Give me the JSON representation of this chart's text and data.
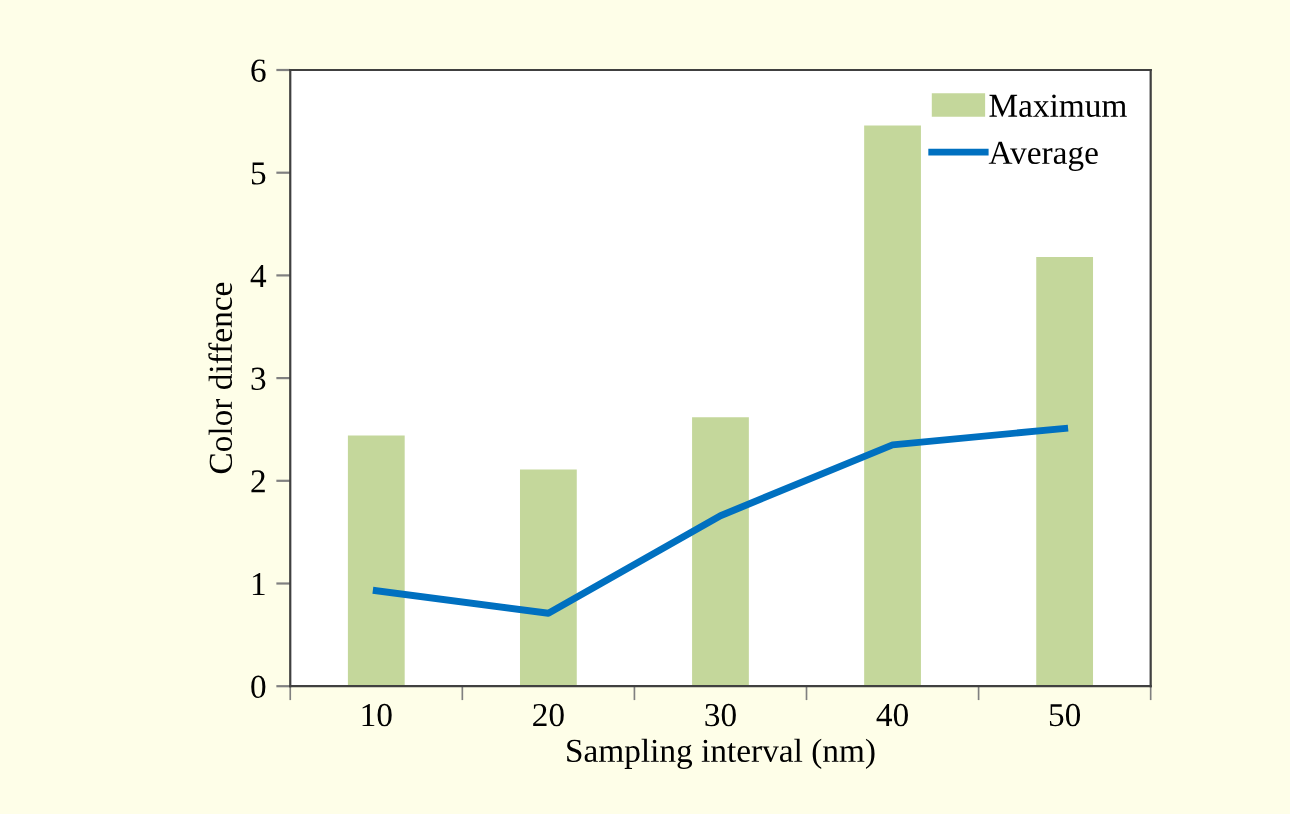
{
  "chart_data": {
    "type": "bar",
    "xlabel": "Sampling interval (nm)",
    "ylabel": "Color diffence",
    "categories": [
      "10",
      "20",
      "30",
      "40",
      "50"
    ],
    "series": [
      {
        "name": "Maximum",
        "color": "#c4d79b",
        "values": [
          2.44,
          2.11,
          2.62,
          5.46,
          4.18
        ]
      },
      {
        "name": "Average",
        "type": "line",
        "color": "#0070c0",
        "values": [
          0.93,
          0.71,
          1.66,
          2.35,
          2.51
        ]
      }
    ],
    "ylim": [
      0,
      6
    ],
    "yticks": [
      0,
      1,
      2,
      3,
      4,
      5,
      6
    ],
    "grid": false,
    "legend": "top right",
    "marker": "none",
    "line_style": "solid"
  }
}
